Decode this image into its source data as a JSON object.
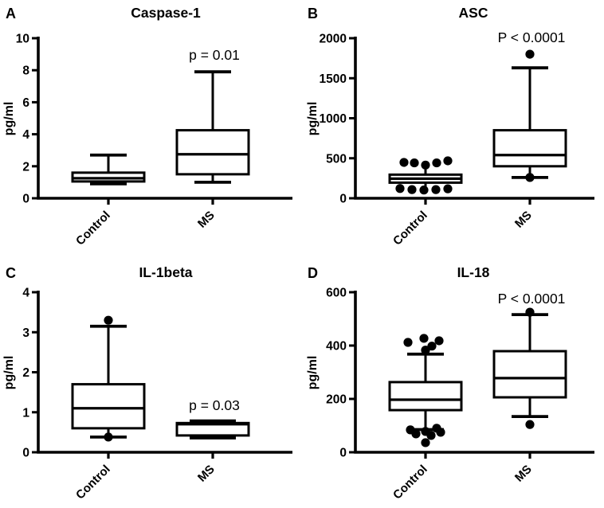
{
  "figure": {
    "background": "#ffffff",
    "ink": "#000000"
  },
  "chart_data": [
    {
      "type": "box",
      "panel_label": "A",
      "title": "Caspase-1",
      "ylabel": "pg/ml",
      "ylim": [
        0,
        10
      ],
      "yticks": [
        0,
        2,
        4,
        6,
        8,
        10
      ],
      "categories": [
        "Control",
        "MS"
      ],
      "annotation": {
        "text": "p = 0.01",
        "category_index": 1,
        "y": 8.65
      },
      "series": [
        {
          "name": "Control",
          "min": 0.9,
          "q1": 1.05,
          "median": 1.25,
          "q3": 1.6,
          "max": 2.7,
          "whisker_caps": true,
          "thick_caps": false,
          "points": []
        },
        {
          "name": "MS",
          "min": 1.0,
          "q1": 1.5,
          "median": 2.75,
          "q3": 4.25,
          "max": 7.9,
          "whisker_caps": true,
          "thick_caps": false,
          "points": []
        }
      ]
    },
    {
      "type": "box",
      "panel_label": "B",
      "title": "ASC",
      "ylabel": "pg/ml",
      "ylim": [
        0,
        2000
      ],
      "yticks": [
        0,
        500,
        1000,
        1500,
        2000
      ],
      "categories": [
        "Control",
        "MS"
      ],
      "annotation": {
        "text": "P < 0.0001",
        "category_index": 1,
        "y": 1950
      },
      "series": [
        {
          "name": "Control",
          "min": 130,
          "q1": 195,
          "median": 245,
          "q3": 295,
          "max": 415,
          "whisker_caps": false,
          "thick_caps": false,
          "points": [
            {
              "dx": -27,
              "y": 448
            },
            {
              "dx": -14,
              "y": 442
            },
            {
              "dx": 0,
              "y": 415
            },
            {
              "dx": 14,
              "y": 442
            },
            {
              "dx": 28,
              "y": 468
            },
            {
              "dx": -32,
              "y": 122
            },
            {
              "dx": -17,
              "y": 108
            },
            {
              "dx": -2,
              "y": 103
            },
            {
              "dx": 13,
              "y": 108
            },
            {
              "dx": 28,
              "y": 118
            }
          ]
        },
        {
          "name": "MS",
          "min": 260,
          "q1": 400,
          "median": 540,
          "q3": 850,
          "max": 1630,
          "whisker_caps": true,
          "thick_caps": false,
          "points": [
            {
              "dx": 0,
              "y": 1800
            },
            {
              "dx": 0,
              "y": 260
            }
          ]
        }
      ]
    },
    {
      "type": "box",
      "panel_label": "C",
      "title": "IL-1beta",
      "ylabel": "pg/ml",
      "ylim": [
        0,
        4
      ],
      "yticks": [
        0,
        1,
        2,
        3,
        4
      ],
      "categories": [
        "Control",
        "MS"
      ],
      "annotation": {
        "text": "p = 0.03",
        "category_index": 1,
        "y": 1.05
      },
      "series": [
        {
          "name": "Control",
          "min": 0.38,
          "q1": 0.6,
          "median": 1.1,
          "q3": 1.7,
          "max": 3.15,
          "whisker_caps": true,
          "thick_caps": false,
          "points": [
            {
              "dx": 0,
              "y": 3.3
            },
            {
              "dx": 0,
              "y": 0.38
            }
          ]
        },
        {
          "name": "MS",
          "min": 0.38,
          "q1": 0.42,
          "median": 0.7,
          "q3": 0.73,
          "max": 0.76,
          "whisker_caps": true,
          "thick_caps": true,
          "points": []
        }
      ]
    },
    {
      "type": "box",
      "panel_label": "D",
      "title": "IL-18",
      "ylabel": "pg/ml",
      "ylim": [
        0,
        600
      ],
      "yticks": [
        0,
        200,
        400,
        600
      ],
      "categories": [
        "Control",
        "MS"
      ],
      "annotation": {
        "text": "P < 0.0001",
        "category_index": 1,
        "y": 558
      },
      "series": [
        {
          "name": "Control",
          "min": 85,
          "q1": 158,
          "median": 197,
          "q3": 263,
          "max": 368,
          "whisker_caps": true,
          "thick_caps": false,
          "points": [
            {
              "dx": -22,
              "y": 412
            },
            {
              "dx": -2,
              "y": 427
            },
            {
              "dx": 8,
              "y": 398
            },
            {
              "dx": 17,
              "y": 418
            },
            {
              "dx": 0,
              "y": 383
            },
            {
              "dx": -19,
              "y": 84
            },
            {
              "dx": -12,
              "y": 69
            },
            {
              "dx": 0,
              "y": 78
            },
            {
              "dx": 7,
              "y": 63
            },
            {
              "dx": 14,
              "y": 90
            },
            {
              "dx": 19,
              "y": 75
            },
            {
              "dx": 0,
              "y": 36
            }
          ]
        },
        {
          "name": "MS",
          "min": 134,
          "q1": 206,
          "median": 278,
          "q3": 379,
          "max": 516,
          "whisker_caps": true,
          "thick_caps": false,
          "points": [
            {
              "dx": 0,
              "y": 525
            },
            {
              "dx": 0,
              "y": 104
            }
          ]
        }
      ]
    }
  ]
}
